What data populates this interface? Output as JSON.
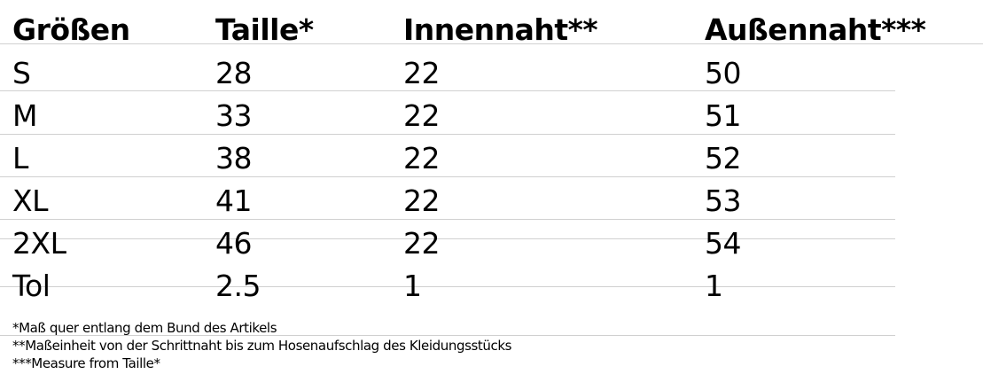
{
  "table": {
    "headers": [
      "Größen",
      "Taille*",
      "Innennaht**",
      "Außennaht***"
    ],
    "rows": [
      [
        "S",
        "28",
        "22",
        "50"
      ],
      [
        "M",
        "33",
        "22",
        "51"
      ],
      [
        "L",
        "38",
        "22",
        "52"
      ],
      [
        "XL",
        "41",
        "22",
        "53"
      ],
      [
        "2XL",
        "46",
        "22",
        "54"
      ],
      [
        "Tol",
        "2.5",
        "1",
        "1"
      ]
    ]
  },
  "footnotes": [
    "*Maß quer entlang dem Bund des Artikels",
    "**Maßeinheit von der Schrittnaht bis zum Hosenaufschlag des Kleidungsstücks",
    "***Measure from Taille*"
  ]
}
